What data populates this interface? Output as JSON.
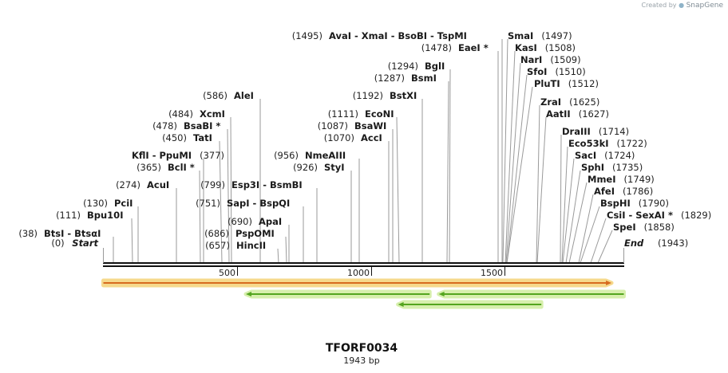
{
  "watermark": {
    "prefix": "Created by",
    "brand": "SnapGene"
  },
  "map": {
    "name": "TFORF0034",
    "length_label": "1943 bp",
    "length": 1943
  },
  "ends": [
    {
      "pos": "(0)",
      "name": "Start"
    },
    {
      "name": "End",
      "pos": "(1943)"
    }
  ],
  "ticks": [
    "500",
    "1000",
    "1500"
  ],
  "sites": [
    {
      "text": "BtsI - BtsαI",
      "pos": "(38)"
    },
    {
      "text": "Bpu10I",
      "pos": "(111)"
    },
    {
      "text": "PciI",
      "pos": "(130)"
    },
    {
      "text": "AcuI",
      "pos": "(274)"
    },
    {
      "text": "BclI *",
      "pos": "(365)"
    },
    {
      "text": "KflI - PpuMI",
      "pos": "(377)"
    },
    {
      "text": "TatI",
      "pos": "(450)"
    },
    {
      "text": "BsaBI *",
      "pos": "(478)"
    },
    {
      "text": "XcmI",
      "pos": "(484)"
    },
    {
      "text": "AleI",
      "pos": "(586)"
    },
    {
      "text": "HincII",
      "pos": "(657)"
    },
    {
      "text": "PspOMI",
      "pos": "(686)"
    },
    {
      "text": "ApaI",
      "pos": "(690)"
    },
    {
      "text": "SapI - BspQI",
      "pos": "(751)"
    },
    {
      "text": "Esp3I - BsmBI",
      "pos": "(799)"
    },
    {
      "text": "StyI",
      "pos": "(926)"
    },
    {
      "text": "NmeAIII",
      "pos": "(956)"
    },
    {
      "text": "AccI",
      "pos": "(1070)"
    },
    {
      "text": "BsaWI",
      "pos": "(1087)"
    },
    {
      "text": "EcoNI",
      "pos": "(1111)"
    },
    {
      "text": "BstXI",
      "pos": "(1192)"
    },
    {
      "text": "BsmI",
      "pos": "(1287)"
    },
    {
      "text": "BglI",
      "pos": "(1294)"
    },
    {
      "text": "EaeI *",
      "pos": "(1478)"
    },
    {
      "text": "AvaI - XmaI - BsoBI - TspMI",
      "pos": "(1495)"
    },
    {
      "text": "SmaI",
      "pos": "(1497)"
    },
    {
      "text": "KasI",
      "pos": "(1508)"
    },
    {
      "text": "NarI",
      "pos": "(1509)"
    },
    {
      "text": "SfoI",
      "pos": "(1510)"
    },
    {
      "text": "PluTI",
      "pos": "(1512)"
    },
    {
      "text": "ZraI",
      "pos": "(1625)"
    },
    {
      "text": "AatII",
      "pos": "(1627)"
    },
    {
      "text": "DraIII",
      "pos": "(1714)"
    },
    {
      "text": "Eco53kI",
      "pos": "(1722)"
    },
    {
      "text": "SacI",
      "pos": "(1724)"
    },
    {
      "text": "SphI",
      "pos": "(1735)"
    },
    {
      "text": "MmeI",
      "pos": "(1749)"
    },
    {
      "text": "AfeI",
      "pos": "(1786)"
    },
    {
      "text": "BspHI",
      "pos": "(1790)"
    },
    {
      "text": "CsiI - SexAI *",
      "pos": "(1829)"
    },
    {
      "text": "SpeI",
      "pos": "(1858)"
    }
  ],
  "features": [
    {
      "name": "orf-forward",
      "start": 0,
      "end": 1897,
      "direction": "forward",
      "fill": "#f6d98c",
      "stroke": "#d76b1f"
    },
    {
      "name": "orf-reverse-a",
      "start": 532,
      "end": 1218,
      "direction": "reverse",
      "fill": "#d7efad",
      "stroke": "#54a51f"
    },
    {
      "name": "orf-reverse-b",
      "start": 1252,
      "end": 1943,
      "direction": "reverse",
      "fill": "#d7efad",
      "stroke": "#54a51f"
    },
    {
      "name": "orf-reverse-c",
      "start": 1100,
      "end": 1635,
      "direction": "reverse",
      "fill": "#d7efad",
      "stroke": "#54a51f"
    }
  ]
}
